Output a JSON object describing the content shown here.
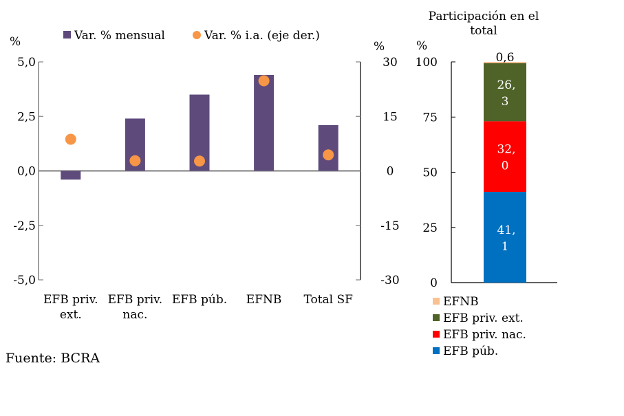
{
  "chart_data": [
    {
      "type": "bar",
      "title": "",
      "categories": [
        [
          "EFB priv.",
          "ext."
        ],
        [
          "EFB priv.",
          "nac."
        ],
        [
          "EFB púb."
        ],
        [
          "EFNB"
        ],
        [
          "Total SF"
        ]
      ],
      "series": [
        {
          "name": "Var. % mensual",
          "type": "bar",
          "axis": "left",
          "color": "#5e4b7c",
          "values": [
            -0.4,
            2.4,
            3.5,
            4.4,
            2.1
          ]
        },
        {
          "name": "Var. % i.a. (eje der.)",
          "type": "scatter",
          "axis": "right",
          "color": "#f79646",
          "values": [
            8.7,
            2.8,
            2.7,
            24.8,
            4.4
          ]
        }
      ],
      "left_axis": {
        "label": "%",
        "ylim": [
          -5,
          5
        ],
        "ticks": [
          5,
          2.5,
          0,
          -2.5,
          -5
        ],
        "tick_labels": [
          "5,0",
          "2,5",
          "0,0",
          "-2,5",
          "-5,0"
        ]
      },
      "right_axis": {
        "label": "%",
        "ylim": [
          -30,
          30
        ],
        "ticks": [
          30,
          15,
          0,
          -15,
          -30
        ],
        "tick_labels": [
          "30",
          "15",
          "0",
          "-15",
          "-30"
        ]
      },
      "legend": {
        "placement": "top",
        "entries": [
          "Var. % mensual",
          "Var. % i.a. (eje der.)"
        ]
      }
    },
    {
      "type": "bar",
      "stacked": true,
      "title": "Participación en el total",
      "title_lines": [
        "Participación en el",
        "total"
      ],
      "ylabel": "%",
      "ylim": [
        0,
        100
      ],
      "ticks": [
        100,
        75,
        50,
        25,
        0
      ],
      "tick_labels": [
        "100",
        "75",
        "50",
        "25",
        "0"
      ],
      "series": [
        {
          "name": "EFB púb.",
          "value": 41.1,
          "color": "#0070c0",
          "label_lines": [
            "41,",
            "1"
          ],
          "label_color": "#ffffff"
        },
        {
          "name": "EFB priv. nac.",
          "value": 32.0,
          "color": "#ff0000",
          "label_lines": [
            "32,",
            "0"
          ],
          "label_color": "#ffffff"
        },
        {
          "name": "EFB priv. ext.",
          "value": 26.3,
          "color": "#4f6228",
          "label_lines": [
            "26,",
            "3"
          ],
          "label_color": "#ffffff"
        },
        {
          "name": "EFNB",
          "value": 0.6,
          "color": "#fac090",
          "label_lines": [
            "0,6"
          ],
          "label_color": "#000000"
        }
      ],
      "legend": {
        "placement": "bottom",
        "entries": [
          "EFNB",
          "EFB priv. ext.",
          "EFB priv. nac.",
          "EFB púb."
        ]
      }
    }
  ],
  "source": "Fuente: BCRA"
}
